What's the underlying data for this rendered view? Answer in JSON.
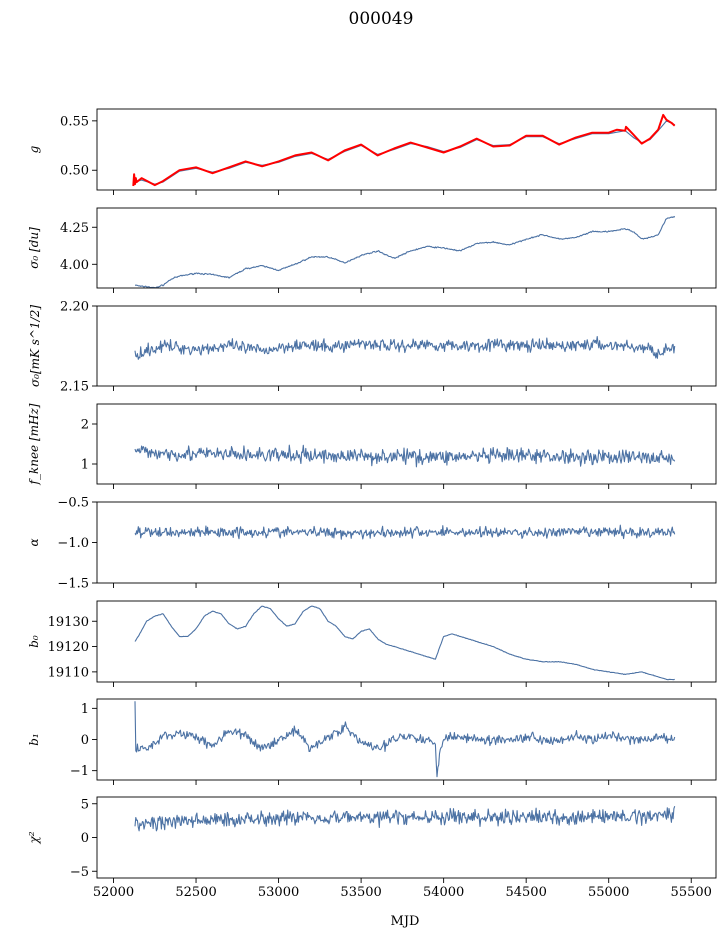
{
  "figure": {
    "title": "000049",
    "xlabel": "MJD",
    "xticks": [
      52000,
      52500,
      53000,
      53500,
      54000,
      54500,
      55000,
      55500
    ],
    "xlim": [
      51900,
      55650
    ],
    "colors": {
      "series": "#4c72a4",
      "overlay": "#ff0000",
      "axes": "#000000"
    }
  },
  "chart_data": [
    {
      "type": "line",
      "ylabel": "g",
      "ylim": [
        0.48,
        0.562
      ],
      "yticks": [
        0.5,
        0.55
      ],
      "yticklabels": [
        "0.50",
        "0.55"
      ],
      "series": [
        {
          "role": "line",
          "x": [
            52120,
            52170,
            52250,
            52300,
            52400,
            52500,
            52600,
            52700,
            52800,
            52900,
            53000,
            53100,
            53200,
            53300,
            53400,
            53500,
            53600,
            53700,
            53800,
            53900,
            54000,
            54100,
            54200,
            54300,
            54400,
            54500,
            54600,
            54700,
            54800,
            54900,
            55000,
            55100,
            55150,
            55200,
            55250,
            55300,
            55350,
            55400
          ],
          "y": [
            0.488,
            0.49,
            0.486,
            0.488,
            0.499,
            0.502,
            0.498,
            0.502,
            0.508,
            0.505,
            0.508,
            0.514,
            0.517,
            0.511,
            0.519,
            0.525,
            0.516,
            0.521,
            0.527,
            0.524,
            0.519,
            0.523,
            0.531,
            0.525,
            0.526,
            0.534,
            0.534,
            0.527,
            0.532,
            0.537,
            0.537,
            0.54,
            0.533,
            0.528,
            0.531,
            0.54,
            0.55,
            0.546
          ]
        },
        {
          "role": "overlay",
          "x": [
            52120,
            52125,
            52130,
            52135,
            52140,
            52170,
            52250,
            52300,
            52400,
            52500,
            52600,
            52700,
            52800,
            52900,
            53000,
            53100,
            53200,
            53300,
            53400,
            53500,
            53600,
            53700,
            53800,
            53900,
            54000,
            54100,
            54200,
            54300,
            54400,
            54500,
            54600,
            54700,
            54800,
            54900,
            55000,
            55050,
            55100,
            55105,
            55150,
            55200,
            55250,
            55300,
            55330,
            55350,
            55380,
            55400
          ],
          "y": [
            0.484,
            0.496,
            0.486,
            0.492,
            0.488,
            0.492,
            0.485,
            0.489,
            0.5,
            0.503,
            0.497,
            0.503,
            0.509,
            0.504,
            0.509,
            0.515,
            0.518,
            0.51,
            0.52,
            0.526,
            0.515,
            0.522,
            0.528,
            0.523,
            0.518,
            0.524,
            0.532,
            0.524,
            0.525,
            0.535,
            0.535,
            0.526,
            0.533,
            0.538,
            0.538,
            0.541,
            0.54,
            0.544,
            0.536,
            0.527,
            0.532,
            0.541,
            0.556,
            0.551,
            0.548,
            0.545
          ]
        }
      ]
    },
    {
      "type": "line",
      "ylabel": "σ₀ [du]",
      "ylim": [
        3.84,
        4.38
      ],
      "yticks": [
        4.0,
        4.25
      ],
      "yticklabels": [
        "4.00",
        "4.25"
      ],
      "noise": 0.004,
      "series": [
        {
          "x": [
            52130,
            52170,
            52200,
            52250,
            52300,
            52350,
            52400,
            52500,
            52600,
            52700,
            52800,
            52900,
            53000,
            53100,
            53200,
            53300,
            53400,
            53500,
            53600,
            53700,
            53800,
            53900,
            54000,
            54100,
            54200,
            54300,
            54400,
            54500,
            54600,
            54700,
            54800,
            54900,
            55000,
            55100,
            55150,
            55200,
            55250,
            55300,
            55350,
            55400
          ],
          "y": [
            3.86,
            3.85,
            3.85,
            3.84,
            3.86,
            3.9,
            3.92,
            3.94,
            3.93,
            3.91,
            3.97,
            3.99,
            3.96,
            4.0,
            4.05,
            4.05,
            4.01,
            4.06,
            4.09,
            4.04,
            4.09,
            4.12,
            4.11,
            4.09,
            4.14,
            4.15,
            4.13,
            4.17,
            4.2,
            4.17,
            4.18,
            4.22,
            4.22,
            4.24,
            4.22,
            4.17,
            4.18,
            4.2,
            4.31,
            4.32
          ]
        }
      ]
    },
    {
      "type": "line",
      "ylabel": "σ₀[mK s^1/2]",
      "ylim": [
        2.15,
        2.2
      ],
      "yticks": [
        2.15,
        2.2
      ],
      "yticklabels": [
        "2.15",
        "2.20"
      ],
      "noise": 0.0035,
      "series": [
        {
          "x": [
            52130,
            52300,
            52500,
            52700,
            52900,
            53100,
            53300,
            53500,
            53700,
            53900,
            54100,
            54300,
            54500,
            54700,
            54900,
            55100,
            55250,
            55300,
            55400
          ],
          "y": [
            2.17,
            2.175,
            2.173,
            2.175,
            2.172,
            2.176,
            2.174,
            2.177,
            2.175,
            2.176,
            2.175,
            2.176,
            2.175,
            2.175,
            2.176,
            2.175,
            2.173,
            2.171,
            2.174
          ]
        }
      ]
    },
    {
      "type": "line",
      "ylabel": "f_knee [mHz]",
      "ylim": [
        0.5,
        2.5
      ],
      "yticks": [
        1,
        2
      ],
      "yticklabels": [
        "1",
        "2"
      ],
      "noise": 0.17,
      "series": [
        {
          "x": [
            52130,
            52500,
            53000,
            53500,
            54000,
            54500,
            55000,
            55400
          ],
          "y": [
            1.3,
            1.25,
            1.22,
            1.2,
            1.18,
            1.2,
            1.18,
            1.15
          ]
        }
      ]
    },
    {
      "type": "line",
      "ylabel": "α",
      "ylim": [
        -1.5,
        -0.5
      ],
      "yticks": [
        -1.5,
        -1.0,
        -0.5
      ],
      "yticklabels": [
        "−1.5",
        "−1.0",
        "−0.5"
      ],
      "noise": 0.06,
      "series": [
        {
          "x": [
            52130,
            52500,
            53000,
            53500,
            54000,
            54500,
            55000,
            55400
          ],
          "y": [
            -0.88,
            -0.87,
            -0.87,
            -0.88,
            -0.87,
            -0.88,
            -0.87,
            -0.88
          ]
        }
      ]
    },
    {
      "type": "line",
      "ylabel": "b₀",
      "ylim": [
        19106,
        19138
      ],
      "yticks": [
        19110,
        19120,
        19130
      ],
      "yticklabels": [
        "19110",
        "19120",
        "19130"
      ],
      "noise": 0.1,
      "series": [
        {
          "x": [
            52130,
            52150,
            52200,
            52250,
            52300,
            52350,
            52400,
            52450,
            52500,
            52550,
            52600,
            52650,
            52700,
            52750,
            52800,
            52850,
            52900,
            52950,
            53000,
            53050,
            53100,
            53150,
            53200,
            53250,
            53300,
            53350,
            53400,
            53450,
            53500,
            53550,
            53600,
            53650,
            53700,
            53750,
            53800,
            53850,
            53900,
            53950,
            54000,
            54050,
            54100,
            54150,
            54200,
            54300,
            54400,
            54500,
            54600,
            54700,
            54800,
            54900,
            55000,
            55100,
            55200,
            55300,
            55350,
            55400
          ],
          "y": [
            19122,
            19124,
            19130,
            19132,
            19133,
            19128,
            19124,
            19124,
            19127,
            19132,
            19134,
            19133,
            19129,
            19127,
            19128,
            19133,
            19136,
            19135,
            19131,
            19128,
            19129,
            19134,
            19136,
            19135,
            19130,
            19128,
            19124,
            19123,
            19126,
            19127,
            19123,
            19121,
            19120,
            19119,
            19118,
            19117,
            19116,
            19115,
            19124,
            19125,
            19124,
            19123,
            19122,
            19120,
            19117,
            19115,
            19114,
            19114,
            19113,
            19111,
            19110,
            19109,
            19110,
            19108,
            19107,
            19107
          ]
        }
      ]
    },
    {
      "type": "line",
      "ylabel": "b₁",
      "ylim": [
        -1.3,
        1.3
      ],
      "yticks": [
        -1,
        0,
        1
      ],
      "yticklabels": [
        "−1",
        "0",
        "1"
      ],
      "noise": 0.14,
      "series": [
        {
          "x": [
            52130,
            52135,
            52140,
            52200,
            52300,
            52400,
            52500,
            52600,
            52700,
            52800,
            52900,
            53000,
            53100,
            53200,
            53300,
            53400,
            53500,
            53600,
            53650,
            53700,
            53800,
            53900,
            53950,
            53960,
            53980,
            54000,
            54100,
            54200,
            54300,
            54400,
            54500,
            54600,
            54700,
            54800,
            54900,
            55000,
            55100,
            55200,
            55250,
            55300,
            55350,
            55400
          ],
          "y": [
            1.2,
            -0.4,
            -0.3,
            -0.3,
            0.1,
            0.2,
            0.1,
            -0.2,
            0.3,
            0.1,
            -0.3,
            0.0,
            0.3,
            -0.3,
            0.1,
            0.4,
            -0.1,
            -0.3,
            -0.2,
            0.1,
            0.1,
            0.0,
            -0.2,
            -1.1,
            -0.3,
            0.1,
            0.1,
            0.0,
            0.0,
            0.0,
            0.1,
            0.0,
            0.0,
            0.1,
            0.0,
            0.1,
            0.0,
            0.0,
            0.0,
            0.1,
            0.0,
            0.0
          ]
        }
      ]
    },
    {
      "type": "line",
      "ylabel": "χ²",
      "ylim": [
        -6,
        6
      ],
      "yticks": [
        -5,
        0,
        5
      ],
      "yticklabels": [
        "−5",
        "0",
        "5"
      ],
      "noise": 1.0,
      "series": [
        {
          "x": [
            52130,
            52500,
            53000,
            53500,
            54000,
            54500,
            55000,
            55300,
            55400
          ],
          "y": [
            2.0,
            2.5,
            3.0,
            3.0,
            3.0,
            3.0,
            3.0,
            3.3,
            3.8
          ]
        }
      ]
    }
  ]
}
